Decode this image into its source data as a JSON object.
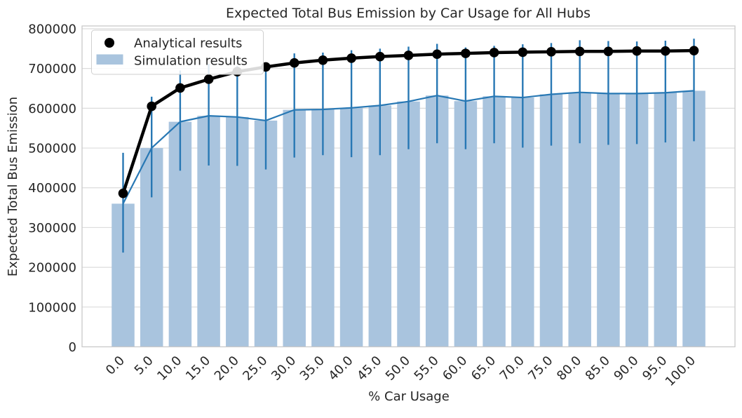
{
  "figure": {
    "title": "Expected Total Bus Emission by Car Usage for All Hubs",
    "xlabel": "% Car Usage",
    "ylabel": "Expected Total Bus Emission"
  },
  "legend": {
    "position": "upper left",
    "items": [
      {
        "label": "Analytical results",
        "marker": "black-dot"
      },
      {
        "label": "Simulation results",
        "marker": "blue-patch"
      }
    ]
  },
  "colors": {
    "bar_fill": "#a9c4de",
    "line_blue": "#2878b4",
    "analytical_black": "#000000",
    "grid": "#dcdcdc",
    "spine": "#c9c9c9",
    "text": "#262626",
    "background": "#ffffff",
    "legend_fill": "rgba(255,255,255,0.85)",
    "legend_border": "#cfcfcf"
  },
  "chart_data": {
    "type": "bar",
    "title": "Expected Total Bus Emission by Car Usage for All Hubs",
    "xlabel": "% Car Usage",
    "ylabel": "Expected Total Bus Emission",
    "grid": true,
    "legend_position": "upper left",
    "ylim": [
      0,
      800000
    ],
    "yticks": [
      0,
      100000,
      200000,
      300000,
      400000,
      500000,
      600000,
      700000,
      800000
    ],
    "categories": [
      "0.0",
      "5.0",
      "10.0",
      "15.0",
      "20.0",
      "25.0",
      "30.0",
      "35.0",
      "40.0",
      "45.0",
      "50.0",
      "55.0",
      "60.0",
      "65.0",
      "70.0",
      "75.0",
      "80.0",
      "85.0",
      "90.0",
      "95.0",
      "100.0"
    ],
    "series": [
      {
        "name": "Analytical results",
        "type": "line+marker",
        "color": "#000000",
        "values": [
          386000,
          605000,
          651000,
          673000,
          692000,
          704000,
          714000,
          721000,
          726000,
          730000,
          733000,
          736000,
          738000,
          740000,
          741000,
          742000,
          743000,
          743000,
          744000,
          744000,
          745000
        ]
      },
      {
        "name": "Simulation results",
        "type": "bar+errorbar+line",
        "bar_color": "#a9c4de",
        "line_color": "#2878b4",
        "values": [
          360000,
          500000,
          566000,
          581000,
          578000,
          569000,
          596000,
          597000,
          601000,
          607000,
          617000,
          632000,
          618000,
          630000,
          627000,
          635000,
          640000,
          637000,
          637000,
          639000,
          644000
        ],
        "error_low": [
          237000,
          376000,
          443000,
          456000,
          455000,
          446000,
          476000,
          482000,
          477000,
          482000,
          497000,
          512000,
          497000,
          512000,
          501000,
          506000,
          512000,
          508000,
          510000,
          514000,
          517000
        ],
        "error_high": [
          488000,
          629000,
          695000,
          712000,
          706000,
          698000,
          738000,
          740000,
          746000,
          750000,
          755000,
          762000,
          753000,
          757000,
          761000,
          764000,
          771000,
          769000,
          768000,
          770000,
          775000
        ]
      }
    ]
  }
}
